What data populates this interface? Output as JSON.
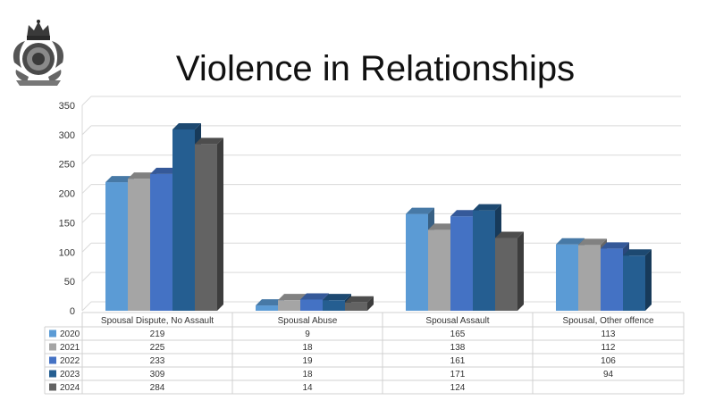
{
  "title": "Violence in Relationships",
  "logo": {
    "icon": "rcmp-crest-icon"
  },
  "colors": {
    "2020": "#5b9bd5",
    "2021": "#a5a5a5",
    "2022": "#4472c4",
    "2023": "#255e91",
    "2024": "#636363"
  },
  "chart_data": {
    "type": "bar",
    "categories": [
      "Spousal Dispute, No Assault",
      "Spousal Abuse",
      "Spousal Assault",
      "Spousal, Other offence"
    ],
    "series": [
      {
        "name": "2020",
        "values": [
          219,
          9,
          165,
          113
        ]
      },
      {
        "name": "2021",
        "values": [
          225,
          18,
          138,
          112
        ]
      },
      {
        "name": "2022",
        "values": [
          233,
          19,
          161,
          106
        ]
      },
      {
        "name": "2023",
        "values": [
          309,
          18,
          171,
          94
        ]
      },
      {
        "name": "2024",
        "values": [
          284,
          14,
          124,
          null
        ]
      }
    ],
    "ylim": [
      0,
      350
    ],
    "yticks": [
      "0",
      "50",
      "100",
      "150",
      "200",
      "250",
      "300",
      "350"
    ],
    "grid": true,
    "legend": "data-table-below"
  }
}
